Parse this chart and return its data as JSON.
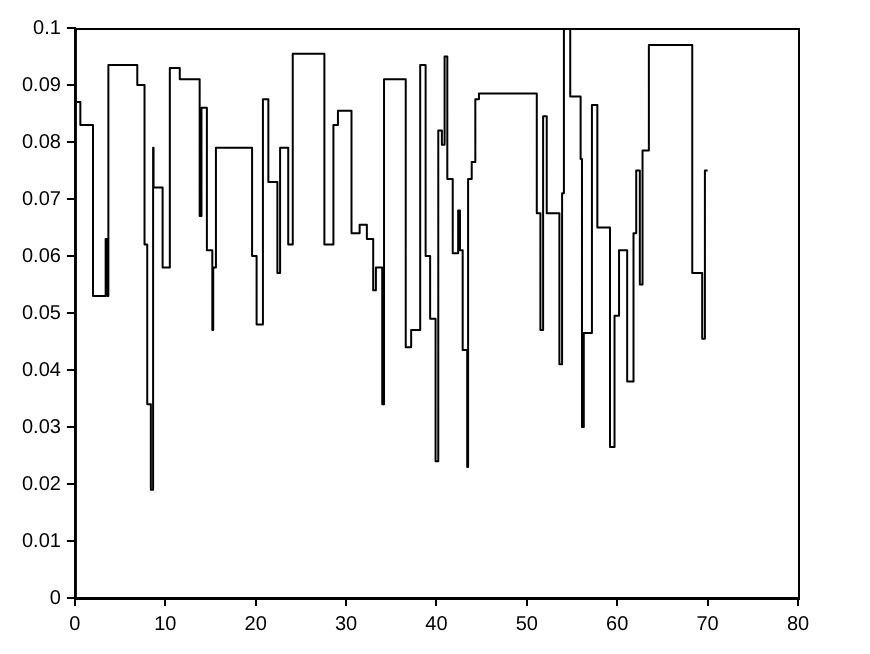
{
  "chart_data": {
    "type": "step",
    "xlim": [
      0,
      80
    ],
    "xticks": [
      0,
      10,
      20,
      30,
      40,
      50,
      60,
      70,
      80
    ],
    "ylim": [
      0,
      0.1
    ],
    "yticks": [
      0,
      0.01,
      0.02,
      0.03,
      0.04,
      0.05,
      0.06,
      0.07,
      0.08,
      0.09,
      0.1
    ],
    "grid": false,
    "legend": false,
    "marker": "none",
    "line_style": "solid",
    "series": [
      {
        "color": "#000000",
        "x": [
          0,
          0.6,
          2,
          3.4,
          3.6,
          3.7,
          6.9,
          7.7,
          8.0,
          8.4,
          8.65,
          8.7,
          9.7,
          10.5,
          11.6,
          13.8,
          14,
          14.6,
          15.2,
          15.3,
          15.6,
          19.6,
          20.1,
          20.8,
          21.4,
          22.4,
          22.7,
          23.6,
          24.1,
          27.6,
          28.6,
          29.1,
          30.6,
          31.5,
          32.3,
          33.0,
          33.3,
          34.0,
          34.2,
          36.6,
          37.2,
          38.2,
          38.8,
          39.3,
          39.9,
          40.2,
          40.6,
          40.9,
          41.2,
          41.8,
          42.4,
          42.6,
          42.9,
          43.4,
          43.5,
          43.9,
          44.3,
          44.7,
          51.1,
          51.5,
          51.8,
          52.2,
          53.6,
          53.9,
          54.1,
          54.8,
          55.95,
          56.1,
          56.3,
          57.2,
          57.8,
          59.2,
          59.7,
          60.2,
          61.1,
          61.8,
          62.1,
          62.5,
          62.8,
          63.5,
          68.3,
          69.4,
          69.7,
          70
        ],
        "values": [
          0.087,
          0.083,
          0.053,
          0.063,
          0.053,
          0.0935,
          0.09,
          0.062,
          0.034,
          0.019,
          0.079,
          0.072,
          0.058,
          0.093,
          0.091,
          0.067,
          0.086,
          0.061,
          0.047,
          0.058,
          0.079,
          0.06,
          0.048,
          0.0875,
          0.073,
          0.057,
          0.079,
          0.062,
          0.0955,
          0.062,
          0.083,
          0.0855,
          0.064,
          0.0655,
          0.063,
          0.054,
          0.058,
          0.034,
          0.091,
          0.044,
          0.047,
          0.0935,
          0.06,
          0.049,
          0.024,
          0.082,
          0.0795,
          0.095,
          0.0735,
          0.0605,
          0.068,
          0.061,
          0.0435,
          0.023,
          0.0735,
          0.0765,
          0.0875,
          0.0885,
          0.0675,
          0.047,
          0.0845,
          0.0675,
          0.041,
          0.071,
          0.1,
          0.088,
          0.077,
          0.03,
          0.0465,
          0.0865,
          0.065,
          0.0265,
          0.0495,
          0.061,
          0.038,
          0.064,
          0.075,
          0.055,
          0.0785,
          0.097,
          0.057,
          0.0455,
          0.075,
          0.075
        ]
      }
    ]
  }
}
